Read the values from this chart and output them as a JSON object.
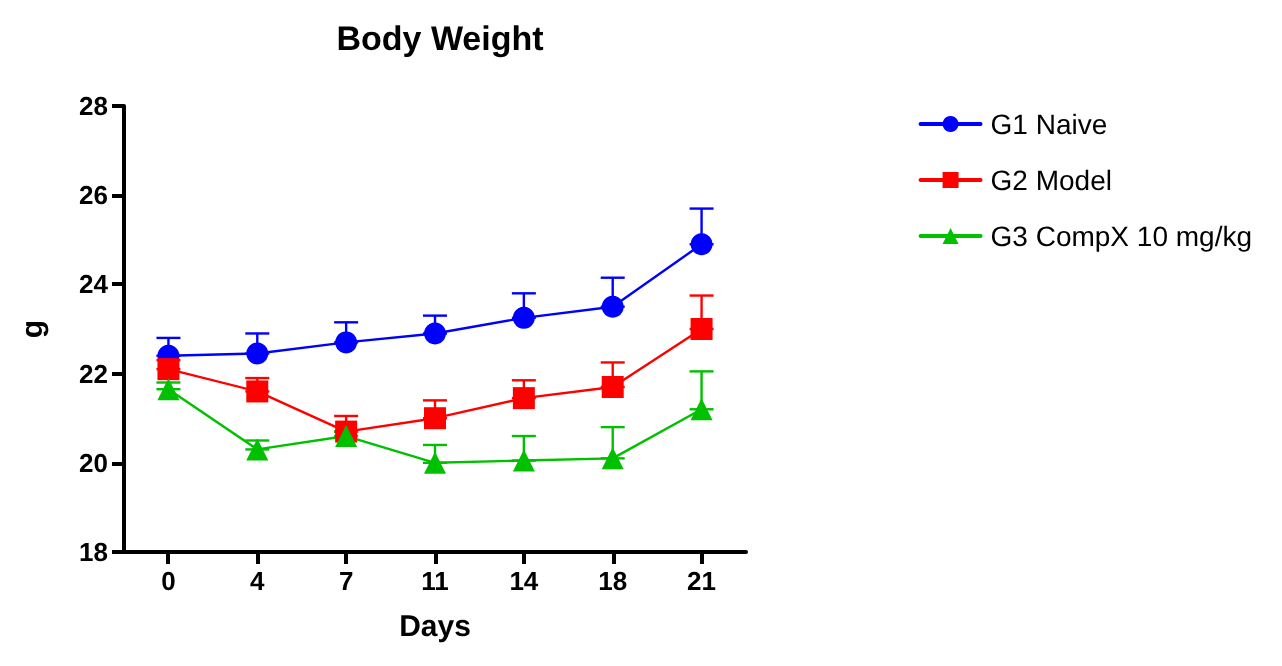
{
  "chart_data": {
    "type": "line",
    "title": "Body Weight",
    "xlabel": "Days",
    "ylabel": "g",
    "categories": [
      "0",
      "4",
      "7",
      "11",
      "14",
      "18",
      "21"
    ],
    "ylim": [
      18,
      28
    ],
    "yticks": [
      18,
      20,
      22,
      24,
      26,
      28
    ],
    "grid": false,
    "legend": "right",
    "series": [
      {
        "name": "G1 Naive",
        "color": "#0000ff",
        "marker": "circle",
        "values": [
          22.4,
          22.45,
          22.7,
          22.9,
          23.25,
          23.5,
          24.9
        ],
        "errors": [
          [
            22.4,
            22.8
          ],
          [
            22.45,
            22.9
          ],
          [
            22.7,
            23.15
          ],
          [
            22.9,
            23.3
          ],
          [
            23.25,
            23.8
          ],
          [
            23.5,
            24.15
          ],
          [
            24.9,
            25.7
          ]
        ]
      },
      {
        "name": "G2 Model",
        "color": "#ff0000",
        "marker": "square",
        "values": [
          22.1,
          21.6,
          20.7,
          21.0,
          21.45,
          21.7,
          23.0
        ],
        "errors": [
          [
            22.1,
            22.3
          ],
          [
            21.6,
            21.9
          ],
          [
            20.7,
            21.05
          ],
          [
            21.0,
            21.4
          ],
          [
            21.45,
            21.85
          ],
          [
            21.7,
            22.25
          ],
          [
            23.0,
            23.75
          ]
        ]
      },
      {
        "name": "G3 CompX 10 mg/kg",
        "color": "#00c000",
        "marker": "triangle",
        "values": [
          21.65,
          20.3,
          20.6,
          20.0,
          20.05,
          20.1,
          21.2
        ],
        "errors": [
          [
            21.65,
            21.8
          ],
          [
            20.3,
            20.5
          ],
          [
            20.6,
            20.7
          ],
          [
            20.0,
            20.4
          ],
          [
            20.05,
            20.6
          ],
          [
            20.1,
            20.8
          ],
          [
            21.2,
            22.05
          ]
        ]
      }
    ]
  }
}
